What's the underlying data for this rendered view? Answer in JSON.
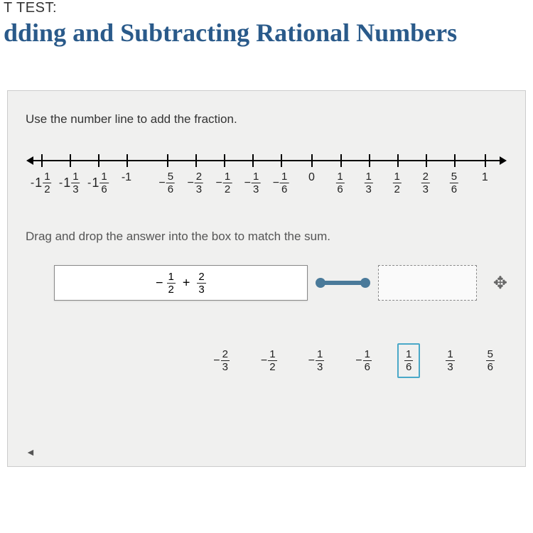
{
  "header": {
    "test_label": "T TEST:",
    "title": "dding and Subtracting Rational Numbers"
  },
  "question": {
    "instruction1": "Use the number line to add the fraction.",
    "instruction2": "Drag and drop the answer into the box to match the sum.",
    "number_line": {
      "ticks": [
        {
          "pos": 2.5,
          "type": "mixed",
          "neg": true,
          "whole": "1",
          "num": "1",
          "den": "2"
        },
        {
          "pos": 8.5,
          "type": "mixed",
          "neg": true,
          "whole": "1",
          "num": "1",
          "den": "3"
        },
        {
          "pos": 14.5,
          "type": "mixed",
          "neg": true,
          "whole": "1",
          "num": "1",
          "den": "6"
        },
        {
          "pos": 20.5,
          "type": "int",
          "text": "-1"
        },
        {
          "pos": 29,
          "type": "frac",
          "neg": true,
          "num": "5",
          "den": "6"
        },
        {
          "pos": 35,
          "type": "frac",
          "neg": true,
          "num": "2",
          "den": "3"
        },
        {
          "pos": 41,
          "type": "frac",
          "neg": true,
          "num": "1",
          "den": "2"
        },
        {
          "pos": 47,
          "type": "frac",
          "neg": true,
          "num": "1",
          "den": "3"
        },
        {
          "pos": 53,
          "type": "frac",
          "neg": true,
          "num": "1",
          "den": "6"
        },
        {
          "pos": 59.5,
          "type": "int",
          "text": "0"
        },
        {
          "pos": 65.5,
          "type": "frac",
          "neg": false,
          "num": "1",
          "den": "6"
        },
        {
          "pos": 71.5,
          "type": "frac",
          "neg": false,
          "num": "1",
          "den": "3"
        },
        {
          "pos": 77.5,
          "type": "frac",
          "neg": false,
          "num": "1",
          "den": "2"
        },
        {
          "pos": 83.5,
          "type": "frac",
          "neg": false,
          "num": "2",
          "den": "3"
        },
        {
          "pos": 89.5,
          "type": "frac",
          "neg": false,
          "num": "5",
          "den": "6"
        },
        {
          "pos": 96,
          "type": "int",
          "text": "1"
        }
      ]
    },
    "expression": {
      "term1": {
        "neg": true,
        "num": "1",
        "den": "2"
      },
      "op": "+",
      "term2": {
        "neg": false,
        "num": "2",
        "den": "3"
      }
    },
    "options": [
      {
        "neg": true,
        "num": "2",
        "den": "3",
        "selected": false
      },
      {
        "neg": true,
        "num": "1",
        "den": "2",
        "selected": false
      },
      {
        "neg": true,
        "num": "1",
        "den": "3",
        "selected": false
      },
      {
        "neg": true,
        "num": "1",
        "den": "6",
        "selected": false
      },
      {
        "neg": false,
        "num": "1",
        "den": "6",
        "selected": true
      },
      {
        "neg": false,
        "num": "1",
        "den": "3",
        "selected": false
      },
      {
        "neg": false,
        "num": "5",
        "den": "6",
        "selected": false
      }
    ]
  },
  "colors": {
    "title_color": "#2a5a8a",
    "panel_bg": "#f0f0ef",
    "connector": "#4a7a9a",
    "selected_border": "#4aa8c8"
  }
}
